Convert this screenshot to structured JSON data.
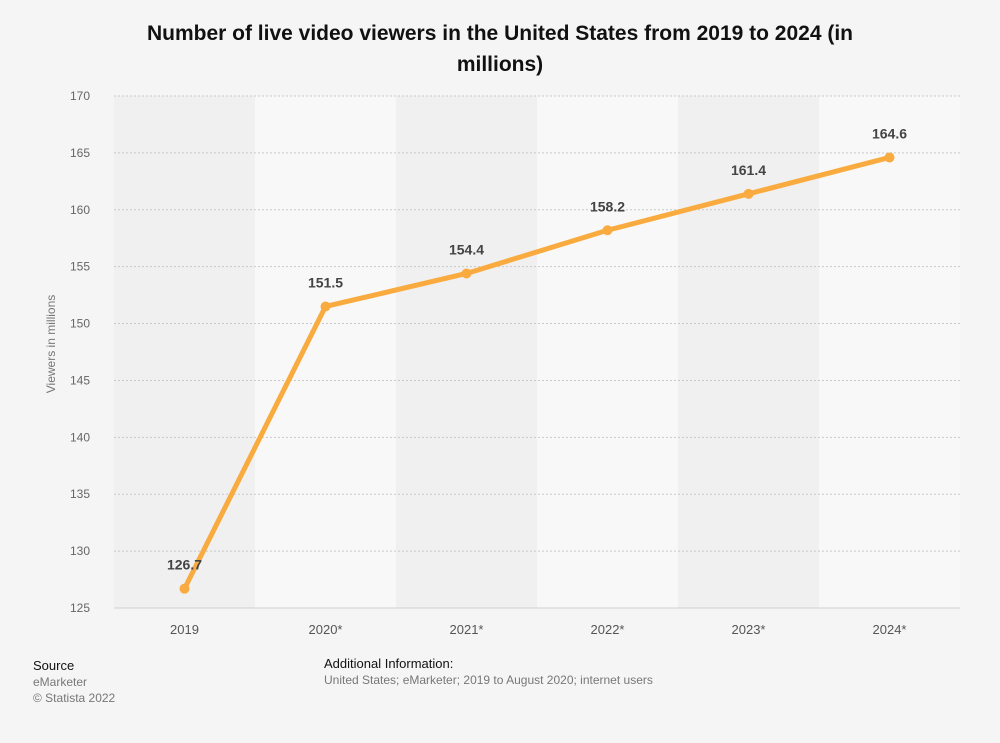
{
  "chart_data": {
    "type": "line",
    "title": "Number of live video viewers in the United States from 2019 to 2024 (in millions)",
    "categories": [
      "2019",
      "2020*",
      "2021*",
      "2022*",
      "2023*",
      "2024*"
    ],
    "values": [
      126.7,
      151.5,
      154.4,
      158.2,
      161.4,
      164.6
    ],
    "data_labels": [
      "126.7",
      "151.5",
      "154.4",
      "158.2",
      "161.4",
      "164.6"
    ],
    "xlabel": "",
    "ylabel": "Viewers in millions",
    "ylim": [
      125,
      170
    ],
    "yticks": [
      125,
      130,
      135,
      140,
      145,
      150,
      155,
      160,
      165,
      170
    ],
    "ytick_labels": [
      "125",
      "130",
      "135",
      "140",
      "145",
      "150",
      "155",
      "160",
      "165",
      "170"
    ],
    "grid": true,
    "line_color": "#f9ab3f"
  },
  "footer": {
    "source_heading": "Source",
    "source_name": "eMarketer",
    "copyright": "© Statista 2022",
    "info_heading": "Additional Information:",
    "info_text": "United States; eMarketer; 2019 to August 2020; internet users"
  }
}
